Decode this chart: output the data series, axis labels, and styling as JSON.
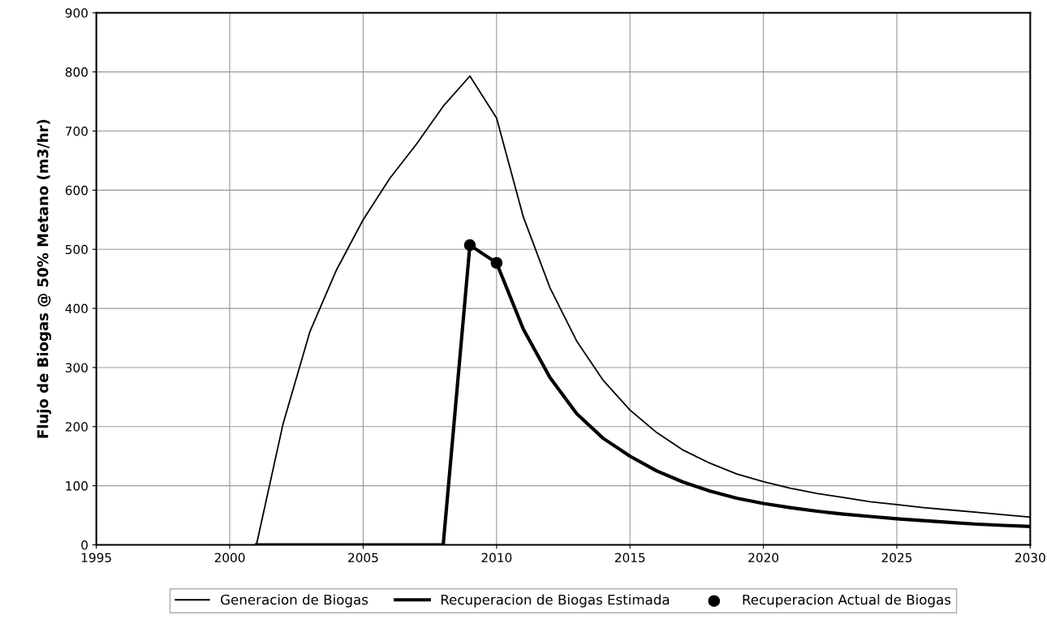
{
  "chart_data": {
    "type": "line",
    "ylabel": "Flujo de Biogas @ 50% Metano (m3/hr)",
    "xlim": [
      1995,
      2030
    ],
    "xticks": [
      1995,
      2000,
      2005,
      2010,
      2015,
      2020,
      2025,
      2030
    ],
    "ylim": [
      0,
      900
    ],
    "yticks": [
      0,
      100,
      200,
      300,
      400,
      500,
      600,
      700,
      800,
      900
    ],
    "grid": true,
    "legend": "bottom",
    "series": [
      {
        "name": "Generacion de Biogas",
        "color": "#000000",
        "x": [
          2001,
          2002,
          2003,
          2004,
          2005,
          2006,
          2007,
          2008,
          2009,
          2010,
          2011,
          2012,
          2013,
          2014,
          2015,
          2016,
          2017,
          2018,
          2019,
          2020,
          2021,
          2022,
          2023,
          2024,
          2025,
          2026,
          2027,
          2028,
          2029,
          2030
        ],
        "values": [
          0,
          205,
          360,
          465,
          550,
          620,
          678,
          742,
          793,
          722,
          555,
          435,
          345,
          278,
          228,
          190,
          160,
          138,
          120,
          107,
          96,
          87,
          80,
          73,
          68,
          63,
          59,
          55,
          51,
          47
        ]
      },
      {
        "name": "Recuperacion de Biogas Estimada",
        "color": "#000000",
        "x": [
          2001,
          2002,
          2003,
          2004,
          2005,
          2006,
          2007,
          2008,
          2009,
          2010,
          2011,
          2012,
          2013,
          2014,
          2015,
          2016,
          2017,
          2018,
          2019,
          2020,
          2021,
          2022,
          2023,
          2024,
          2025,
          2026,
          2027,
          2028,
          2029,
          2030
        ],
        "values": [
          0,
          0,
          0,
          0,
          0,
          0,
          0,
          0,
          507,
          477,
          365,
          283,
          222,
          180,
          150,
          125,
          106,
          91,
          79,
          70,
          63,
          57,
          52,
          48,
          44,
          41,
          38,
          35,
          33,
          31
        ]
      },
      {
        "name": "Recuperacion Actual de Biogas",
        "type": "scatter",
        "marker": "circle",
        "color": "#000000",
        "x": [
          2009,
          2010
        ],
        "values": [
          507,
          477
        ]
      }
    ]
  }
}
